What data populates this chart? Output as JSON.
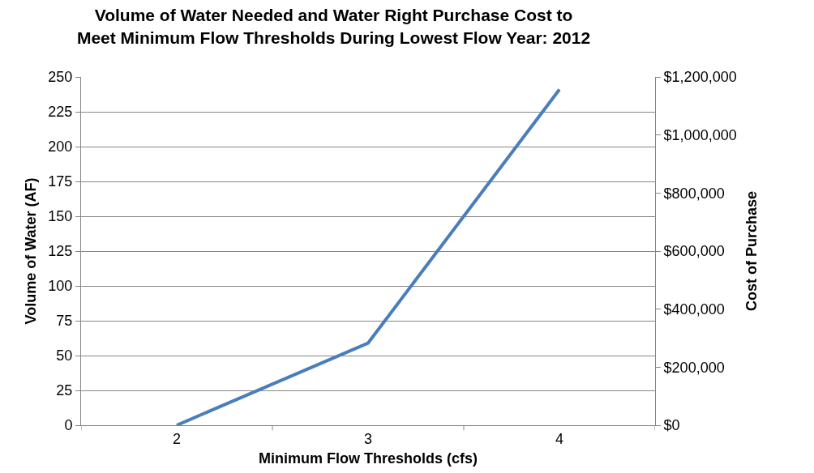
{
  "chart_data": {
    "type": "line",
    "title": "Volume of Water Needed and Water Right Purchase Cost to\nMeet Minimum Flow Thresholds During Lowest Flow Year: 2012",
    "xlabel": "Minimum Flow Thresholds (cfs)",
    "ylabel": "Volume of Water (AF)",
    "y2label": "Cost of Purchase",
    "categories": [
      "2",
      "3",
      "4"
    ],
    "series": [
      {
        "color": "#4a7ebb",
        "values": [
          0,
          59,
          241
        ]
      }
    ],
    "ylim": [
      0,
      250
    ],
    "yticks": [
      0,
      25,
      50,
      75,
      100,
      125,
      150,
      175,
      200,
      225,
      250
    ],
    "y2lim": [
      0,
      1200000
    ],
    "y2ticks": [
      {
        "value": 0,
        "label": "$0"
      },
      {
        "value": 200000,
        "label": "$200,000"
      },
      {
        "value": 400000,
        "label": "$400,000"
      },
      {
        "value": 600000,
        "label": "$600,000"
      },
      {
        "value": 800000,
        "label": "$800,000"
      },
      {
        "value": 1000000,
        "label": "$1,000,000"
      },
      {
        "value": 1200000,
        "label": "$1,200,000"
      }
    ],
    "grid": "y",
    "marker": "none",
    "line_style": "solid"
  }
}
